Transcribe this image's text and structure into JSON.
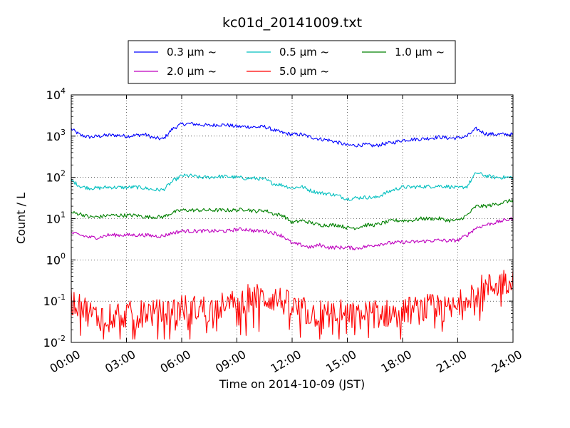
{
  "chart_data": {
    "type": "line",
    "title": "kc01d_20141009.txt",
    "xlabel": "Time on 2014-10-09 (JST)",
    "ylabel": "Count / L",
    "yscale": "log",
    "xlim": [
      "2014-10-09 00:00",
      "2014-10-10 00:00"
    ],
    "ylim": [
      0.01,
      10000
    ],
    "grid": true,
    "legend_position": "top-center",
    "x_tick_labels": [
      "00:00",
      "03:00",
      "06:00",
      "09:00",
      "12:00",
      "15:00",
      "18:00",
      "21:00",
      "24:00"
    ],
    "y_tick_labels": [
      {
        "base": "10",
        "exp": "-2"
      },
      {
        "base": "10",
        "exp": "-1"
      },
      {
        "base": "10",
        "exp": "0"
      },
      {
        "base": "10",
        "exp": "1"
      },
      {
        "base": "10",
        "exp": "2"
      },
      {
        "base": "10",
        "exp": "3"
      },
      {
        "base": "10",
        "exp": "4"
      }
    ],
    "x": [
      "00:00",
      "00:30",
      "01:00",
      "01:30",
      "02:00",
      "02:30",
      "03:00",
      "03:30",
      "04:00",
      "04:30",
      "05:00",
      "05:30",
      "06:00",
      "06:30",
      "07:00",
      "07:30",
      "08:00",
      "08:30",
      "09:00",
      "09:30",
      "10:00",
      "10:30",
      "11:00",
      "11:30",
      "12:00",
      "12:30",
      "13:00",
      "13:30",
      "14:00",
      "14:30",
      "15:00",
      "15:30",
      "16:00",
      "16:30",
      "17:00",
      "17:30",
      "18:00",
      "18:30",
      "19:00",
      "19:30",
      "20:00",
      "20:30",
      "21:00",
      "21:30",
      "22:00",
      "22:30",
      "23:00",
      "23:30",
      "24:00"
    ],
    "series": [
      {
        "name": "0.3 μm ~",
        "color": "#0000ff",
        "values": [
          1500,
          1050,
          950,
          1000,
          1050,
          1050,
          1000,
          1050,
          1100,
          900,
          850,
          1500,
          1950,
          2000,
          1900,
          1800,
          1900,
          1850,
          1700,
          1700,
          1650,
          1700,
          1400,
          1200,
          1100,
          1100,
          950,
          850,
          800,
          700,
          600,
          600,
          620,
          580,
          650,
          700,
          800,
          830,
          850,
          900,
          950,
          900,
          900,
          1000,
          1500,
          1150,
          1100,
          1100,
          1100
        ]
      },
      {
        "name": "0.5 μm ~",
        "color": "#00bfbf",
        "values": [
          85,
          60,
          55,
          55,
          58,
          57,
          57,
          58,
          55,
          50,
          50,
          80,
          110,
          110,
          100,
          100,
          105,
          105,
          100,
          95,
          95,
          90,
          70,
          65,
          55,
          60,
          48,
          42,
          40,
          36,
          30,
          32,
          33,
          32,
          40,
          50,
          58,
          58,
          60,
          60,
          62,
          60,
          55,
          60,
          130,
          110,
          100,
          100,
          100
        ]
      },
      {
        "name": "1.0 μm ~",
        "color": "#008000",
        "values": [
          14,
          13,
          11,
          11,
          12,
          12,
          12,
          12,
          11,
          11,
          11,
          14,
          16,
          16,
          16,
          16,
          16,
          16,
          16,
          17,
          15,
          16,
          13,
          12,
          8,
          9,
          8,
          7,
          7,
          7,
          6,
          6,
          7,
          7,
          8,
          9,
          9,
          9,
          10,
          10,
          10,
          9,
          9,
          12,
          20,
          20,
          22,
          25,
          28
        ]
      },
      {
        "name": "2.0 μm ~",
        "color": "#bf00bf",
        "values": [
          4.5,
          4,
          3.5,
          3.5,
          4,
          4,
          4,
          4,
          4,
          3.8,
          3.8,
          4.5,
          5,
          5,
          5,
          5,
          5,
          5,
          5.5,
          5.5,
          5,
          5,
          4.5,
          3.8,
          2.5,
          2.3,
          2,
          2.3,
          2,
          2,
          2,
          1.9,
          2.1,
          2.3,
          2.5,
          2.6,
          2.7,
          2.7,
          2.8,
          2.9,
          3,
          2.9,
          3,
          4,
          6,
          7,
          8,
          9,
          10
        ]
      },
      {
        "name": "5.0 μm ~",
        "color": "#ff0000",
        "values": [
          0.1,
          0.08,
          0.05,
          0.04,
          0.05,
          0.05,
          0.05,
          0.04,
          0.06,
          0.05,
          0.05,
          0.06,
          0.07,
          0.06,
          0.07,
          0.06,
          0.08,
          0.07,
          0.1,
          0.12,
          0.12,
          0.12,
          0.12,
          0.1,
          0.07,
          0.06,
          0.05,
          0.05,
          0.05,
          0.05,
          0.05,
          0.04,
          0.05,
          0.05,
          0.05,
          0.05,
          0.06,
          0.06,
          0.06,
          0.07,
          0.06,
          0.06,
          0.07,
          0.15,
          0.2,
          0.2,
          0.25,
          0.3,
          0.35
        ]
      }
    ]
  }
}
